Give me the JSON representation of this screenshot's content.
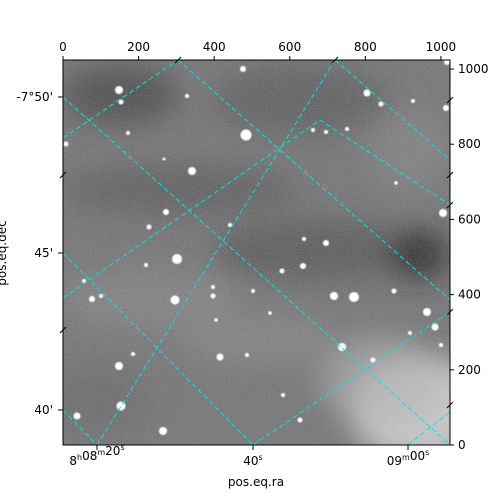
{
  "chart_data": {
    "type": "image",
    "xlabel": "pos.eq.ra",
    "ylabel": "pos.eq.dec",
    "top_axis_ticks": [
      "0",
      "200",
      "400",
      "600",
      "800",
      "1000"
    ],
    "right_axis_ticks": [
      "0",
      "200",
      "400",
      "600",
      "800",
      "1000"
    ],
    "ra_ticks": [
      {
        "hours": "8",
        "minutes": "08",
        "seconds": "20"
      },
      {
        "seconds": "40"
      },
      {
        "minutes": "09",
        "seconds": "00"
      }
    ],
    "dec_ticks": [
      {
        "degrees": "-7°",
        "arcmin": "50'"
      },
      {
        "arcmin": "45'"
      },
      {
        "arcmin": "40'"
      }
    ],
    "pixel_range": [
      0,
      1024
    ],
    "grid": true,
    "grid_color": "#00e5e5",
    "frame_color": "#000000",
    "image_colormap": "grayscale"
  }
}
